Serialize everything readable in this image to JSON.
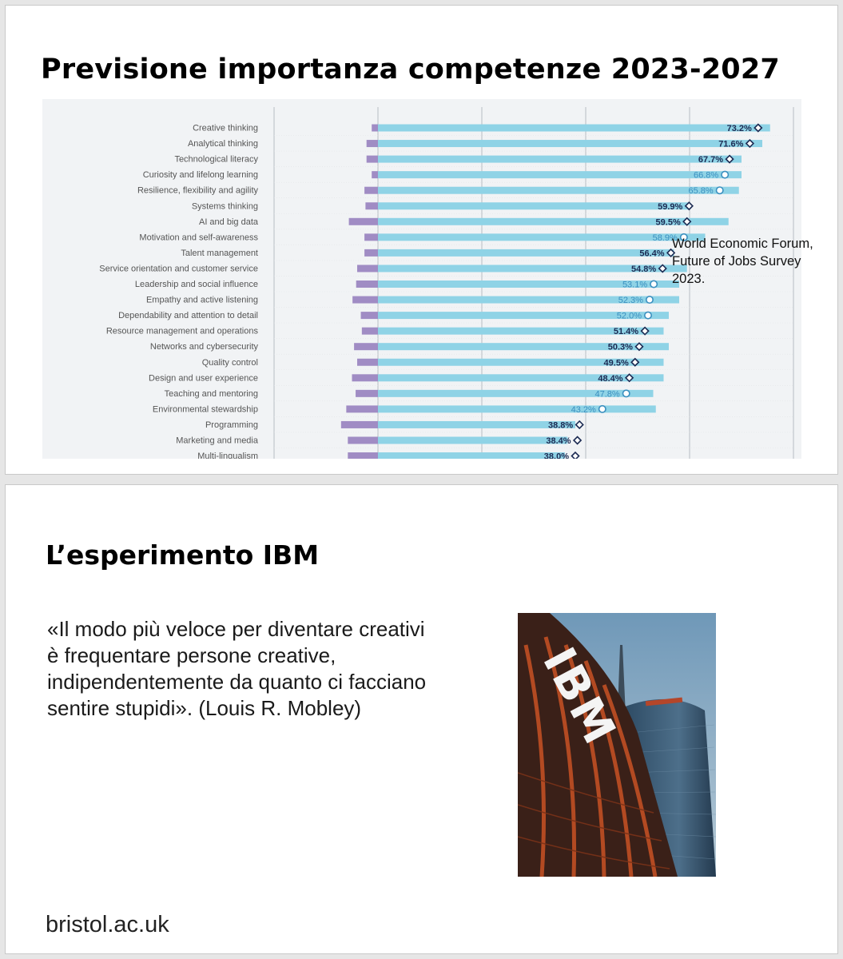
{
  "slide1": {
    "title": "Previsione importanza competenze 2023-2027",
    "source_note": "World Economic Forum, Future of Jobs Survey 2023."
  },
  "chart_data": {
    "type": "bar",
    "orientation": "horizontal",
    "categories": [
      "Creative thinking",
      "Analytical thinking",
      "Technological literacy",
      "Curiosity and lifelong learning",
      "Resilience, flexibility and agility",
      "Systems thinking",
      "AI and big data",
      "Motivation and self-awareness",
      "Talent management",
      "Service orientation and customer service",
      "Leadership and social influence",
      "Empathy and active listening",
      "Dependability and attention to detail",
      "Resource management and operations",
      "Networks and cybersecurity",
      "Quality control",
      "Design and user experience",
      "Teaching and mentoring",
      "Environmental stewardship",
      "Programming",
      "Marketing and media",
      "Multi-lingualism"
    ],
    "series": [
      {
        "values": [
          1.2,
          2.2,
          2.2,
          1.2,
          2.6,
          2.4,
          5.6,
          2.6,
          2.6,
          4.0,
          4.2,
          4.9,
          3.3,
          3.1,
          4.6,
          4.0,
          5.0,
          4.3,
          6.1,
          7.1,
          5.8,
          5.8
        ]
      },
      {
        "values": [
          75.5,
          74.0,
          70.0,
          70.0,
          69.5,
          60.0,
          67.5,
          63.0,
          57.0,
          59.5,
          58.0,
          58.0,
          56.0,
          55.0,
          56.0,
          55.0,
          55.0,
          53.0,
          53.5,
          38.0,
          36.5,
          36.0
        ]
      }
    ],
    "markers": {
      "labels": [
        "73.2%",
        "71.6%",
        "67.7%",
        "66.8%",
        "65.8%",
        "59.9%",
        "59.5%",
        "58.9%",
        "56.4%",
        "54.8%",
        "53.1%",
        "52.3%",
        "52.0%",
        "51.4%",
        "50.3%",
        "49.5%",
        "48.4%",
        "47.8%",
        "43.2%",
        "38.8%",
        "38.4%",
        "38.0%"
      ],
      "values": [
        73.2,
        71.6,
        67.7,
        66.8,
        65.8,
        59.9,
        59.5,
        58.9,
        56.4,
        54.8,
        53.1,
        52.3,
        52.0,
        51.4,
        50.3,
        49.5,
        48.4,
        47.8,
        43.2,
        38.8,
        38.4,
        38.0
      ],
      "shapes": [
        "diamond",
        "diamond",
        "diamond",
        "circle",
        "circle",
        "diamond",
        "diamond",
        "circle",
        "diamond",
        "diamond",
        "circle",
        "circle",
        "circle",
        "diamond",
        "diamond",
        "diamond",
        "diamond",
        "circle",
        "circle",
        "diamond",
        "diamond",
        "diamond"
      ],
      "label_styles": [
        "dark",
        "dark",
        "dark",
        "light",
        "light",
        "dark",
        "dark",
        "light",
        "dark",
        "dark",
        "light",
        "light",
        "light",
        "dark",
        "dark",
        "dark",
        "dark",
        "light",
        "light",
        "dark",
        "dark",
        "dark"
      ]
    },
    "xlim": [
      -20,
      80
    ],
    "gridlines": [
      -20,
      0,
      20,
      40,
      60,
      80
    ],
    "grid": true,
    "colors": {
      "positive": "#8fd3e6",
      "negative": "#a08cc4",
      "label_dark": "#1b2a52",
      "label_light": "#3a8fbf",
      "background": "#f1f3f5",
      "grid": "#b8bcc2"
    }
  },
  "slide2": {
    "title": "L’esperimento IBM",
    "quote": "«Il modo più veloce per diventare creativi è frequentare persone creative, indipendentemente da quanto ci facciano sentire stupidi». (Louis R. Mobley)",
    "footer": "bristol.ac.uk"
  },
  "photo": {
    "sign_text": "IBM",
    "sky_color": "#7fa6c4",
    "facade_color": "#a0401c"
  }
}
